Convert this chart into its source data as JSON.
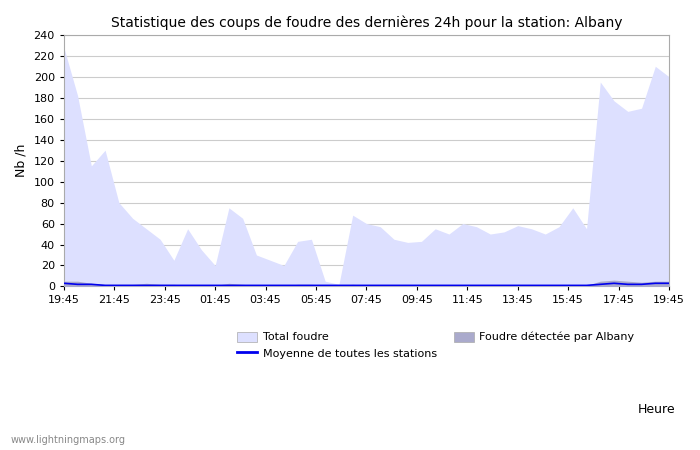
{
  "title": "Statistique des coups de foudre des dernières 24h pour la station: Albany",
  "ylabel": "Nb /h",
  "xlabel": "Heure",
  "watermark": "www.lightningmaps.org",
  "x_labels": [
    "19:45",
    "21:45",
    "23:45",
    "01:45",
    "03:45",
    "05:45",
    "07:45",
    "09:45",
    "11:45",
    "13:45",
    "15:45",
    "17:45",
    "19:45"
  ],
  "ylim": [
    0,
    240
  ],
  "yticks": [
    0,
    20,
    40,
    60,
    80,
    100,
    120,
    140,
    160,
    180,
    200,
    220,
    240
  ],
  "bg_color": "#ffffff",
  "plot_bg_color": "#ffffff",
  "grid_color": "#cccccc",
  "total_foudre_fill": "#dde0ff",
  "albany_fill": "#aaaacc",
  "moyenne_color": "#0000ee",
  "legend_labels": [
    "Total foudre",
    "Moyenne de toutes les stations",
    "Foudre détectée par Albany"
  ],
  "total_foudre_data": [
    228,
    182,
    115,
    130,
    80,
    65,
    55,
    45,
    25,
    55,
    35,
    20,
    75,
    65,
    30,
    25,
    20,
    43,
    45,
    5,
    2,
    68,
    60,
    57,
    45,
    42,
    43,
    55,
    50,
    60,
    57,
    50,
    52,
    58,
    55,
    50,
    57,
    75,
    55,
    195,
    177,
    167,
    170,
    210,
    200
  ],
  "albany_data": [
    5,
    5,
    3,
    2,
    2,
    2,
    3,
    2,
    2,
    1,
    1,
    1,
    3,
    2,
    1,
    1,
    1,
    2,
    2,
    1,
    1,
    2,
    1,
    1,
    1,
    1,
    1,
    1,
    1,
    1,
    1,
    1,
    1,
    1,
    1,
    1,
    1,
    1,
    1,
    5,
    6,
    5,
    4,
    5,
    5
  ],
  "moyenne_data": [
    3,
    2,
    2,
    1,
    1,
    1,
    1,
    1,
    1,
    1,
    1,
    1,
    1,
    1,
    1,
    1,
    1,
    1,
    1,
    1,
    1,
    1,
    1,
    1,
    1,
    1,
    1,
    1,
    1,
    1,
    1,
    1,
    1,
    1,
    1,
    1,
    1,
    1,
    1,
    2,
    3,
    2,
    2,
    3,
    3
  ]
}
